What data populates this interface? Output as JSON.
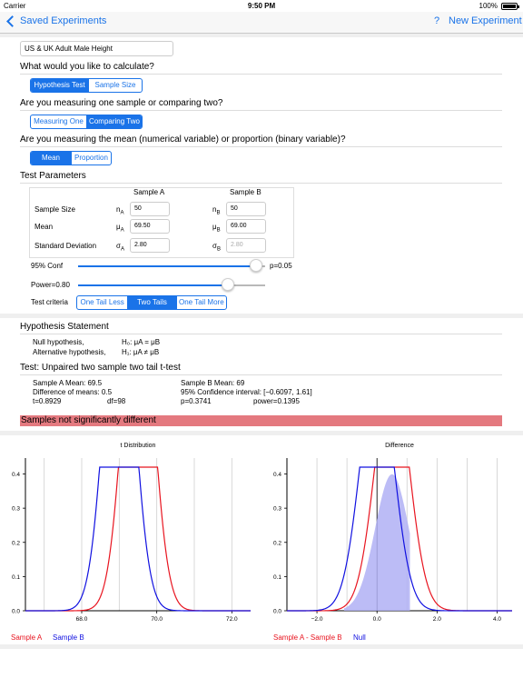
{
  "status": {
    "carrier": "Carrier",
    "time": "9:50 PM",
    "battery": "100%"
  },
  "nav": {
    "back_label": "Saved Experiments",
    "help": "?",
    "new_label": "New Experiment"
  },
  "experiment_name": "US & UK Adult Male Height",
  "q_calc": "What would you like to calculate?",
  "calc_options": [
    "Hypothesis Test",
    "Sample Size"
  ],
  "q_samples": "Are you measuring one sample or comparing two?",
  "sample_options": [
    "Measuring One",
    "Comparing Two"
  ],
  "q_var": "Are you measuring the mean (numerical variable) or proportion (binary variable)?",
  "var_options": [
    "Mean",
    "Proportion"
  ],
  "test_params_title": "Test Parameters",
  "params": {
    "col_a": "Sample A",
    "col_b": "Sample B",
    "rows": [
      {
        "label": "Sample Size",
        "sym_a": "n",
        "sub_a": "A",
        "val_a": "50",
        "sym_b": "n",
        "sub_b": "B",
        "val_b": "50"
      },
      {
        "label": "Mean",
        "sym_a": "μ",
        "sub_a": "A",
        "val_a": "69.50",
        "sym_b": "μ",
        "sub_b": "B",
        "val_b": "69.00"
      },
      {
        "label": "Standard Deviation",
        "sym_a": "σ",
        "sub_a": "A",
        "val_a": "2.80",
        "sym_b": "σ",
        "sub_b": "B",
        "val_b": "2.80"
      }
    ]
  },
  "conf": {
    "label": "95% Conf",
    "value_label": "p=0.05",
    "fraction": 0.95
  },
  "power": {
    "label": "Power=0.80",
    "fraction": 0.8
  },
  "criteria": {
    "label": "Test criteria",
    "options": [
      "One Tail Less",
      "Two Tails",
      "One Tail More"
    ]
  },
  "hypothesis": {
    "title": "Hypothesis Statement",
    "null_label": "Null hypothesis,",
    "null_expr": "H₀: μA = μB",
    "alt_label": "Alternative hypothesis,",
    "alt_expr": "H₁: μA ≠ μB"
  },
  "test_title": "Test: Unpaired two sample two tail t-test",
  "results": {
    "a_mean": "Sample A Mean: 69.5",
    "b_mean": "Sample B Mean: 69",
    "diff": "Difference of means: 0.5",
    "ci": "95% Confidence interval: [−0.6097, 1.61]",
    "t": "t=0.8929",
    "df": "df=98",
    "p": "p=0.3741",
    "power": "power=0.1395"
  },
  "verdict": "Samples not significantly different",
  "colors": {
    "accent": "#1a73e8",
    "red": "#e8141f",
    "blue": "#1010e0",
    "verdict_bg": "#e4797f",
    "fill": "#b0b0f4"
  },
  "chart_data": [
    {
      "type": "line",
      "title": "t Distribution",
      "xlim": [
        66.5,
        72.5
      ],
      "ylim": [
        0,
        0.42
      ],
      "xticks": [
        "68.0",
        "70.0",
        "72.0"
      ],
      "yticks": [
        "0.0",
        "0.1",
        "0.2",
        "0.3",
        "0.4"
      ],
      "series": [
        {
          "name": "Sample A",
          "mean": 69.5,
          "sd": 0.396
        },
        {
          "name": "Sample B",
          "mean": 69.0,
          "sd": 0.396
        }
      ]
    },
    {
      "type": "area",
      "title": "Difference",
      "xlim": [
        -3.0,
        4.5
      ],
      "ylim": [
        0,
        0.42
      ],
      "xticks": [
        "−2.0",
        "0.0",
        "2.0",
        "4.0"
      ],
      "yticks": [
        "0.0",
        "0.1",
        "0.2",
        "0.3",
        "0.4"
      ],
      "series": [
        {
          "name": "Sample A - Sample B",
          "mean": 0.5,
          "sd": 0.56
        },
        {
          "name": "Null",
          "mean": 0.0,
          "sd": 0.56
        }
      ]
    }
  ]
}
